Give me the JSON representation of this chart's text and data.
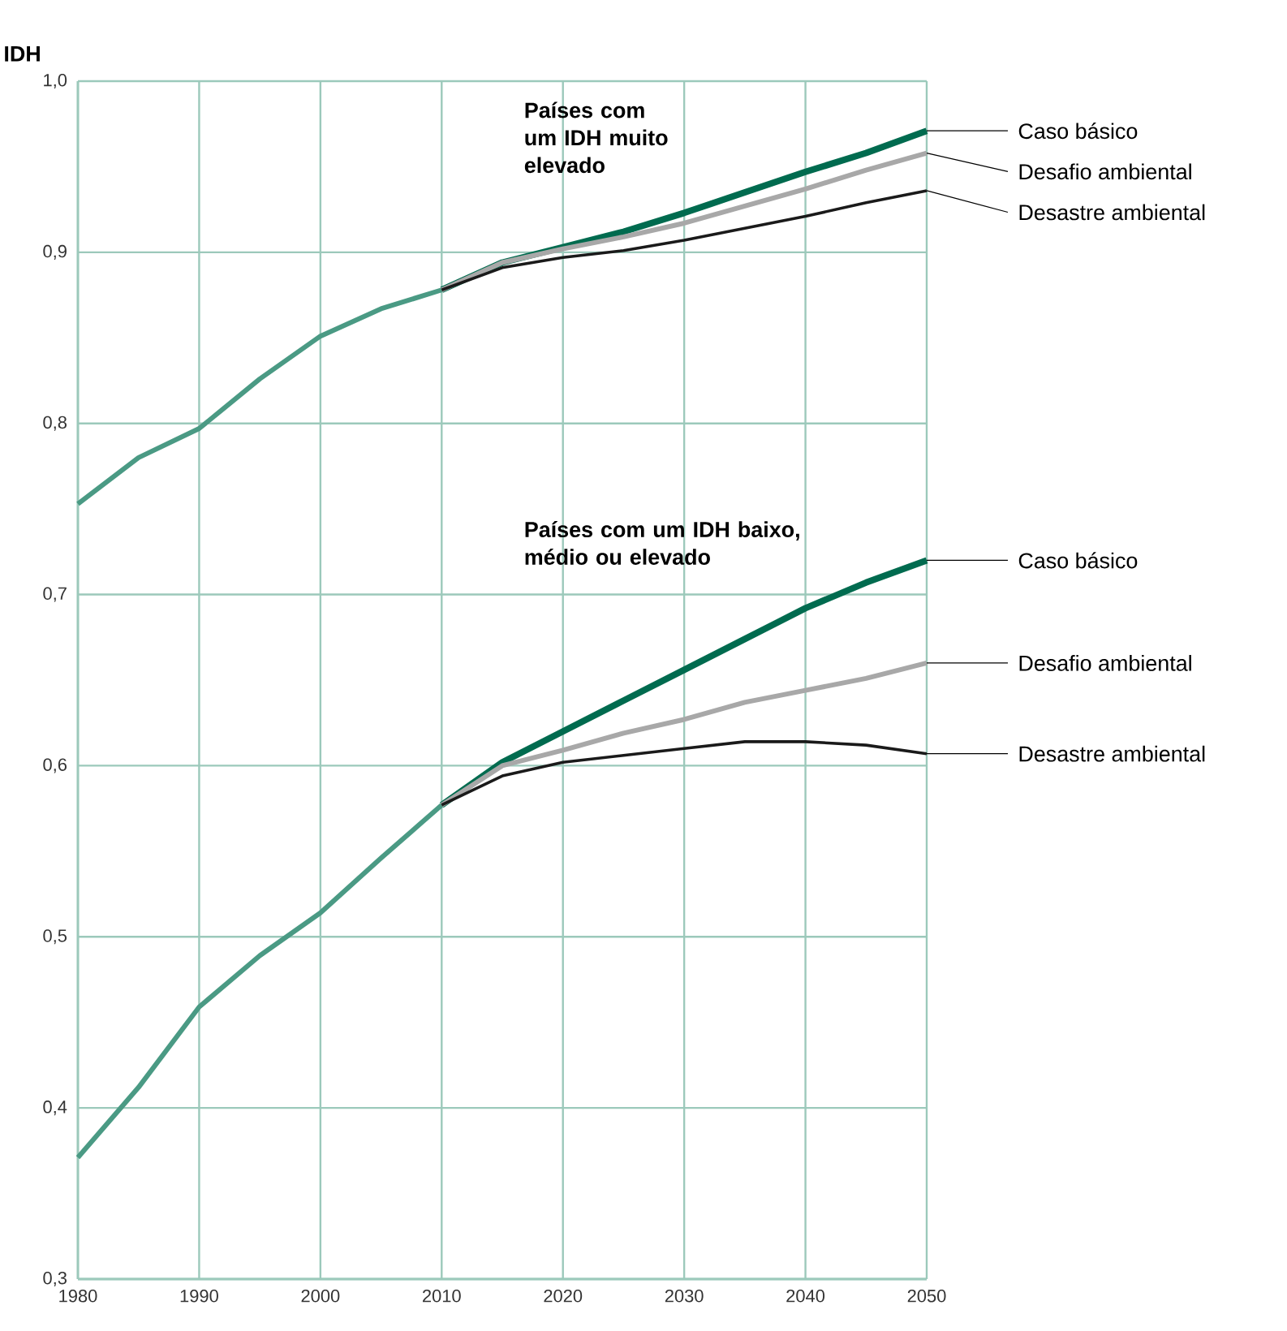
{
  "chart_data": {
    "type": "line",
    "ylabel": "IDH",
    "xlim": [
      1980,
      2050
    ],
    "xticks": [
      1980,
      1990,
      2000,
      2010,
      2020,
      2030,
      2040,
      2050
    ],
    "ylim": [
      0.3,
      1.0
    ],
    "yticks": [
      {
        "value": 0.3,
        "label": "0,3"
      },
      {
        "value": 0.4,
        "label": "0,4"
      },
      {
        "value": 0.5,
        "label": "0,5"
      },
      {
        "value": 0.6,
        "label": "0,6"
      },
      {
        "value": 0.7,
        "label": "0,7"
      },
      {
        "value": 0.8,
        "label": "0,8"
      },
      {
        "value": 0.9,
        "label": "0,9"
      },
      {
        "value": 1.0,
        "label": "1,0"
      }
    ],
    "grid": true,
    "annotations": [
      "Países com um IDH muito elevado",
      "Países com um IDH baixo, médio ou elevado"
    ],
    "series": [
      {
        "color": "#4a9a84",
        "x": [
          1980,
          1985,
          1990,
          1995,
          2000,
          2005,
          2010
        ],
        "values": [
          0.753,
          0.78,
          0.797,
          0.826,
          0.851,
          0.867,
          0.878
        ]
      },
      {
        "name": "Caso básico",
        "color": "#006b4f",
        "x": [
          2010,
          2015,
          2020,
          2025,
          2030,
          2035,
          2040,
          2045,
          2050
        ],
        "values": [
          0.878,
          0.894,
          0.903,
          0.912,
          0.923,
          0.935,
          0.947,
          0.958,
          0.971
        ]
      },
      {
        "name": "Desafio ambiental",
        "color": "#a8a8a8",
        "x": [
          2010,
          2015,
          2020,
          2025,
          2030,
          2035,
          2040,
          2045,
          2050
        ],
        "values": [
          0.878,
          0.894,
          0.902,
          0.909,
          0.917,
          0.927,
          0.937,
          0.948,
          0.958
        ]
      },
      {
        "name": "Desastre ambiental",
        "color": "#1a1a1a",
        "x": [
          2010,
          2015,
          2020,
          2025,
          2030,
          2035,
          2040,
          2045,
          2050
        ],
        "values": [
          0.878,
          0.891,
          0.897,
          0.901,
          0.907,
          0.914,
          0.921,
          0.929,
          0.936
        ]
      },
      {
        "color": "#4a9a84",
        "x": [
          1980,
          1985,
          1990,
          1995,
          2000,
          2005,
          2010
        ],
        "values": [
          0.371,
          0.412,
          0.459,
          0.489,
          0.514,
          0.546,
          0.577
        ]
      },
      {
        "name": "Caso básico",
        "color": "#006b4f",
        "x": [
          2010,
          2015,
          2020,
          2025,
          2030,
          2035,
          2040,
          2045,
          2050
        ],
        "values": [
          0.577,
          0.602,
          0.62,
          0.638,
          0.656,
          0.674,
          0.692,
          0.707,
          0.72
        ]
      },
      {
        "name": "Desafio ambiental",
        "color": "#a8a8a8",
        "x": [
          2010,
          2015,
          2020,
          2025,
          2030,
          2035,
          2040,
          2045,
          2050
        ],
        "values": [
          0.577,
          0.6,
          0.609,
          0.619,
          0.627,
          0.637,
          0.644,
          0.651,
          0.66
        ]
      },
      {
        "name": "Desastre ambiental",
        "color": "#1a1a1a",
        "x": [
          2010,
          2015,
          2020,
          2025,
          2030,
          2035,
          2040,
          2045,
          2050
        ],
        "values": [
          0.577,
          0.594,
          0.602,
          0.606,
          0.61,
          0.614,
          0.614,
          0.612,
          0.607
        ]
      }
    ]
  }
}
